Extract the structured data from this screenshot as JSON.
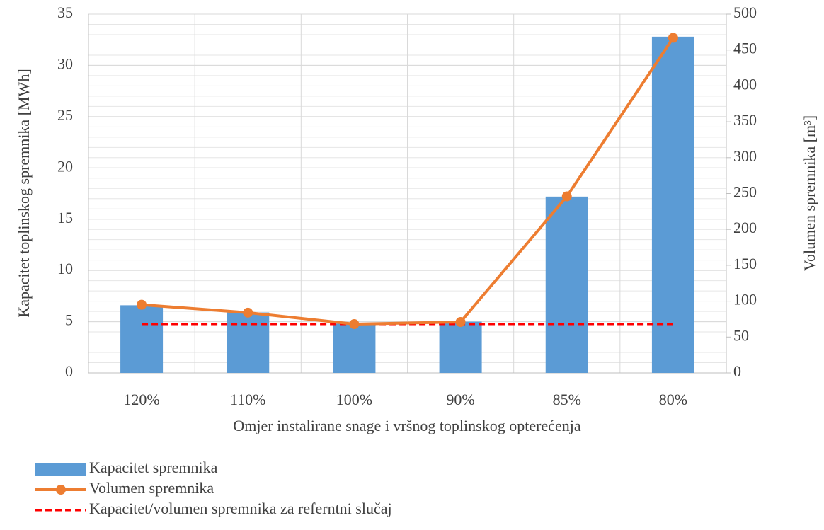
{
  "chart_data": {
    "type": "bar_line",
    "xlabel": "Omjer instalirane snage i vršnog toplinskog opterećenja",
    "ylabel": "Kapacitet toplinskog spremnika [MWh]",
    "y2label": "Volumen spremnika [m³]",
    "categories": [
      "120%",
      "110%",
      "100%",
      "90%",
      "85%",
      "80%"
    ],
    "series": [
      {
        "name": "Kapacitet spremnika",
        "type": "bar",
        "color": "#5b9bd5",
        "values": [
          6.6,
          5.9,
          4.8,
          5.0,
          17.2,
          32.8
        ]
      },
      {
        "name": "Volumen spremnika",
        "type": "line",
        "axis": "y2",
        "color": "#ed7d31",
        "values": [
          95,
          84,
          68,
          71,
          246,
          467
        ]
      },
      {
        "name": "Kapacitet/volumen spremnika za referntni slučaj",
        "type": "dashed",
        "axis": "y2",
        "color": "#ff0000",
        "values": [
          68,
          68,
          68,
          68,
          68,
          68
        ]
      }
    ],
    "ylim": [
      0,
      35
    ],
    "yticks": [
      0,
      5,
      10,
      15,
      20,
      25,
      30,
      35
    ],
    "y2lim": [
      0,
      500
    ],
    "y2ticks": [
      0,
      50,
      100,
      150,
      200,
      250,
      300,
      350,
      400,
      450,
      500
    ],
    "grid": true,
    "minor_grid": true,
    "legend": "bottom-left"
  }
}
